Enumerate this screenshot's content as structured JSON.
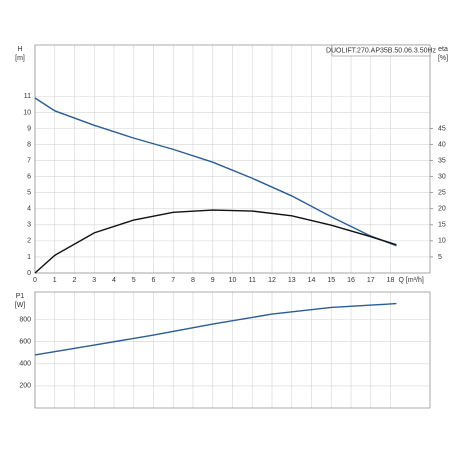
{
  "chart_data": [
    {
      "type": "line",
      "title": "DUOLIFT.270.AP35B.50.06.3.50Hz",
      "ylabel": "H",
      "ylabel_unit": "[m]",
      "y2label": "eta",
      "y2label_unit": "[%]",
      "xlabel": "Q [m³/h]",
      "x": [
        0,
        1,
        3,
        5,
        7,
        9,
        11,
        13,
        15,
        17,
        18.3
      ],
      "series": [
        {
          "name": "H",
          "color": "#2a5d92",
          "values": [
            10.9,
            10.1,
            9.2,
            8.4,
            7.7,
            6.9,
            5.9,
            4.8,
            3.5,
            2.3,
            1.7
          ]
        },
        {
          "name": "eta",
          "color": "#111111",
          "axis": "y2",
          "values": [
            0,
            5.5,
            12.5,
            16.5,
            18.9,
            19.6,
            19.3,
            17.8,
            14.9,
            11.3,
            8.8
          ]
        }
      ],
      "xlim": [
        0,
        20
      ],
      "xticks": [
        0,
        1,
        2,
        3,
        4,
        5,
        6,
        7,
        8,
        9,
        10,
        11,
        12,
        13,
        14,
        15,
        16,
        17,
        18
      ],
      "ylim": [
        0,
        14.2
      ],
      "yticks": [
        0,
        1,
        2,
        3,
        4,
        5,
        6,
        7,
        8,
        9,
        10,
        11
      ],
      "y2lim": [
        0,
        71
      ],
      "y2ticks": [
        5,
        10,
        15,
        20,
        25,
        30,
        35,
        40,
        45
      ],
      "grid": true,
      "show_xtick_labels": true
    },
    {
      "type": "line",
      "ylabel": "P1",
      "ylabel_unit": "[W]",
      "x": [
        0,
        3,
        6,
        9,
        12,
        15,
        18.3
      ],
      "series": [
        {
          "name": "P1",
          "color": "#2a5d92",
          "values": [
            480,
            570,
            660,
            760,
            850,
            910,
            945
          ]
        }
      ],
      "xlim": [
        0,
        20
      ],
      "xticks": [
        0,
        1,
        2,
        3,
        4,
        5,
        6,
        7,
        8,
        9,
        10,
        11,
        12,
        13,
        14,
        15,
        16,
        17,
        18
      ],
      "ylim": [
        0,
        1050
      ],
      "yticks": [
        200,
        400,
        600,
        800
      ],
      "grid": true,
      "show_xtick_labels": false
    }
  ]
}
